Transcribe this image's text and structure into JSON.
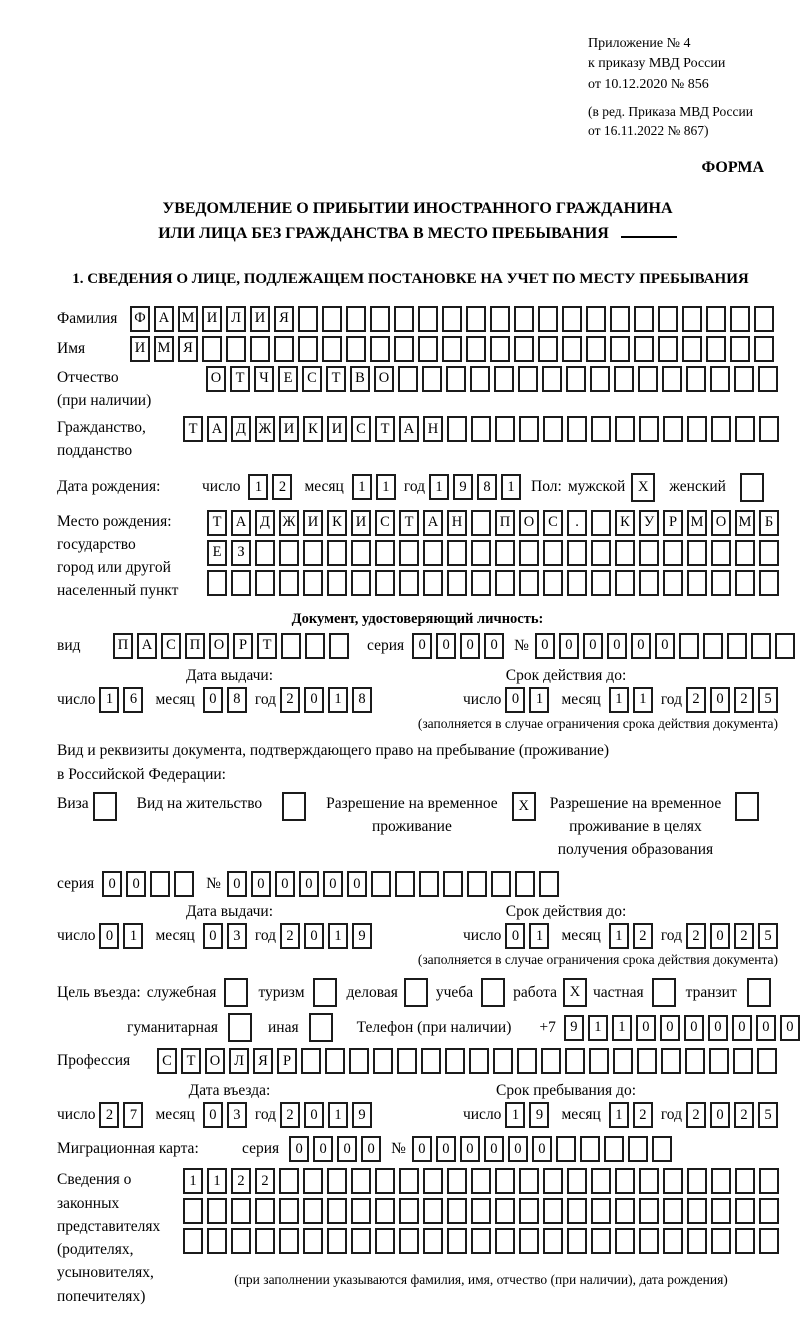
{
  "header": {
    "appendix": [
      "Приложение № 4",
      "к приказу МВД России",
      "от 10.12.2020 № 856"
    ],
    "edition": [
      "(в ред. Приказа МВД России",
      "от 16.11.2022 № 867)"
    ],
    "form_label": "ФОРМА",
    "title_1": "УВЕДОМЛЕНИЕ О ПРИБЫТИИ ИНОСТРАННОГО ГРАЖДАНИНА",
    "title_2": "ИЛИ ЛИЦА БЕЗ ГРАЖДАНСТВА В МЕСТО ПРЕБЫВАНИЯ",
    "section1_heading": "1. СВЕДЕНИЯ О ЛИЦЕ, ПОДЛЕЖАЩЕМ ПОСТАНОВКЕ НА УЧЕТ ПО МЕСТУ ПРЕБЫВАНИЯ"
  },
  "labels": {
    "surname": "Фамилия",
    "name": "Имя",
    "patronymic_1": "Отчество",
    "patronymic_2": "(при наличии)",
    "citizenship_1": "Гражданство,",
    "citizenship_2": "подданство",
    "birth_date": "Дата рождения:",
    "day": "число",
    "month": "месяц",
    "year": "год",
    "sex": "Пол:",
    "male": "мужской",
    "female": "женский",
    "birth_place": [
      "Место рождения:",
      "государство",
      "город или другой",
      "населенный пункт"
    ],
    "id_doc_heading": "Документ, удостоверяющий личность:",
    "doc_kind": "вид",
    "series": "серия",
    "number": "№",
    "issue_date": "Дата выдачи:",
    "valid_until": "Срок действия до:",
    "restriction_note": "(заполняется в случае ограничения срока действия документа)",
    "res_doc_1": "Вид и реквизиты документа, подтверждающего право на пребывание (проживание)",
    "res_doc_2": "в Российской Федерации:",
    "visa": "Виза",
    "residence_permit": "Вид на жительство",
    "temp_res": [
      "Разрешение на временное",
      "проживание"
    ],
    "temp_res_edu": [
      "Разрешение на временное",
      "проживание в целях",
      "получения образования"
    ],
    "entry_purpose": "Цель въезда:",
    "p_official": "служебная",
    "p_tourism": "туризм",
    "p_business": "деловая",
    "p_study": "учеба",
    "p_work": "работа",
    "p_private": "частная",
    "p_transit": "транзит",
    "p_humanitarian": "гуманитарная",
    "p_other": "иная",
    "phone": "Телефон (при наличии)",
    "phone_code": "+7",
    "profession": "Профессия",
    "entry_date": "Дата въезда:",
    "stay_until": "Срок пребывания до:",
    "migration_card": "Миграционная карта:",
    "representatives": [
      "Сведения о",
      "законных",
      "представителях",
      "(родителях,",
      "усыновителях,",
      "попечителях)"
    ],
    "rep_note": "(при заполнении указываются фамилия, имя, отчество (при наличии), дата рождения)"
  },
  "fields": {
    "surname": {
      "v": "ФАМИЛИЯ",
      "n": 27
    },
    "name": {
      "v": "ИМЯ",
      "n": 27
    },
    "patronymic": {
      "v": "ОТЧЕСТВО",
      "n": 24
    },
    "citizenship": {
      "v": "ТАДЖИКИСТАН",
      "n": 25
    },
    "birth_day": {
      "v": "12",
      "n": 2
    },
    "birth_month": {
      "v": "11",
      "n": 2
    },
    "birth_year": {
      "v": "1981",
      "n": 4
    },
    "sex_male": {
      "v": "X",
      "n": 1
    },
    "sex_female": {
      "v": "",
      "n": 1
    },
    "birth_place_row1": {
      "v": "ТАДЖИКИСТАН ПОС. КУРМОМБ",
      "n": 24
    },
    "birth_place_row2": {
      "v": "ЕЗ",
      "n": 24
    },
    "birth_place_row3": {
      "v": "",
      "n": 24
    },
    "id_doc_type": {
      "v": "ПАСПОРТ",
      "n": 10
    },
    "id_series": {
      "v": "0000",
      "n": 4
    },
    "id_number": {
      "v": "000000",
      "n": 11
    },
    "id_issue_day": {
      "v": "16",
      "n": 2
    },
    "id_issue_month": {
      "v": "08",
      "n": 2
    },
    "id_issue_year": {
      "v": "2018",
      "n": 4
    },
    "id_expiry_day": {
      "v": "01",
      "n": 2
    },
    "id_expiry_month": {
      "v": "11",
      "n": 2
    },
    "id_expiry_year": {
      "v": "2025",
      "n": 4
    },
    "cb_visa": {
      "v": "",
      "n": 1
    },
    "cb_residence_permit": {
      "v": "",
      "n": 1
    },
    "cb_temp_res": {
      "v": "X",
      "n": 1
    },
    "cb_temp_res_edu": {
      "v": "",
      "n": 1
    },
    "res_series": {
      "v": "00",
      "n": 4
    },
    "res_number": {
      "v": "000000",
      "n": 14
    },
    "res_issue_day": {
      "v": "01",
      "n": 2
    },
    "res_issue_month": {
      "v": "03",
      "n": 2
    },
    "res_issue_year": {
      "v": "2019",
      "n": 4
    },
    "res_expiry_day": {
      "v": "01",
      "n": 2
    },
    "res_expiry_month": {
      "v": "12",
      "n": 2
    },
    "res_expiry_year": {
      "v": "2025",
      "n": 4
    },
    "cb_official": {
      "v": "",
      "n": 1
    },
    "cb_tourism": {
      "v": "",
      "n": 1
    },
    "cb_business": {
      "v": "",
      "n": 1
    },
    "cb_study": {
      "v": "",
      "n": 1
    },
    "cb_work": {
      "v": "X",
      "n": 1
    },
    "cb_private": {
      "v": "",
      "n": 1
    },
    "cb_transit": {
      "v": "",
      "n": 1
    },
    "cb_humanitarian": {
      "v": "",
      "n": 1
    },
    "cb_other": {
      "v": "",
      "n": 1
    },
    "phone": {
      "v": "9110000000",
      "n": 10
    },
    "profession": {
      "v": "СТОЛЯР",
      "n": 26
    },
    "entry_day": {
      "v": "27",
      "n": 2
    },
    "entry_month": {
      "v": "03",
      "n": 2
    },
    "entry_year": {
      "v": "2019",
      "n": 4
    },
    "stay_day": {
      "v": "19",
      "n": 2
    },
    "stay_month": {
      "v": "12",
      "n": 2
    },
    "stay_year": {
      "v": "2025",
      "n": 4
    },
    "mig_series": {
      "v": "0000",
      "n": 4
    },
    "mig_number": {
      "v": "000000",
      "n": 11
    },
    "rep_row1": {
      "v": "1122",
      "n": 25
    },
    "rep_row2": {
      "v": "",
      "n": 25
    },
    "rep_row3": {
      "v": "",
      "n": 25
    }
  }
}
